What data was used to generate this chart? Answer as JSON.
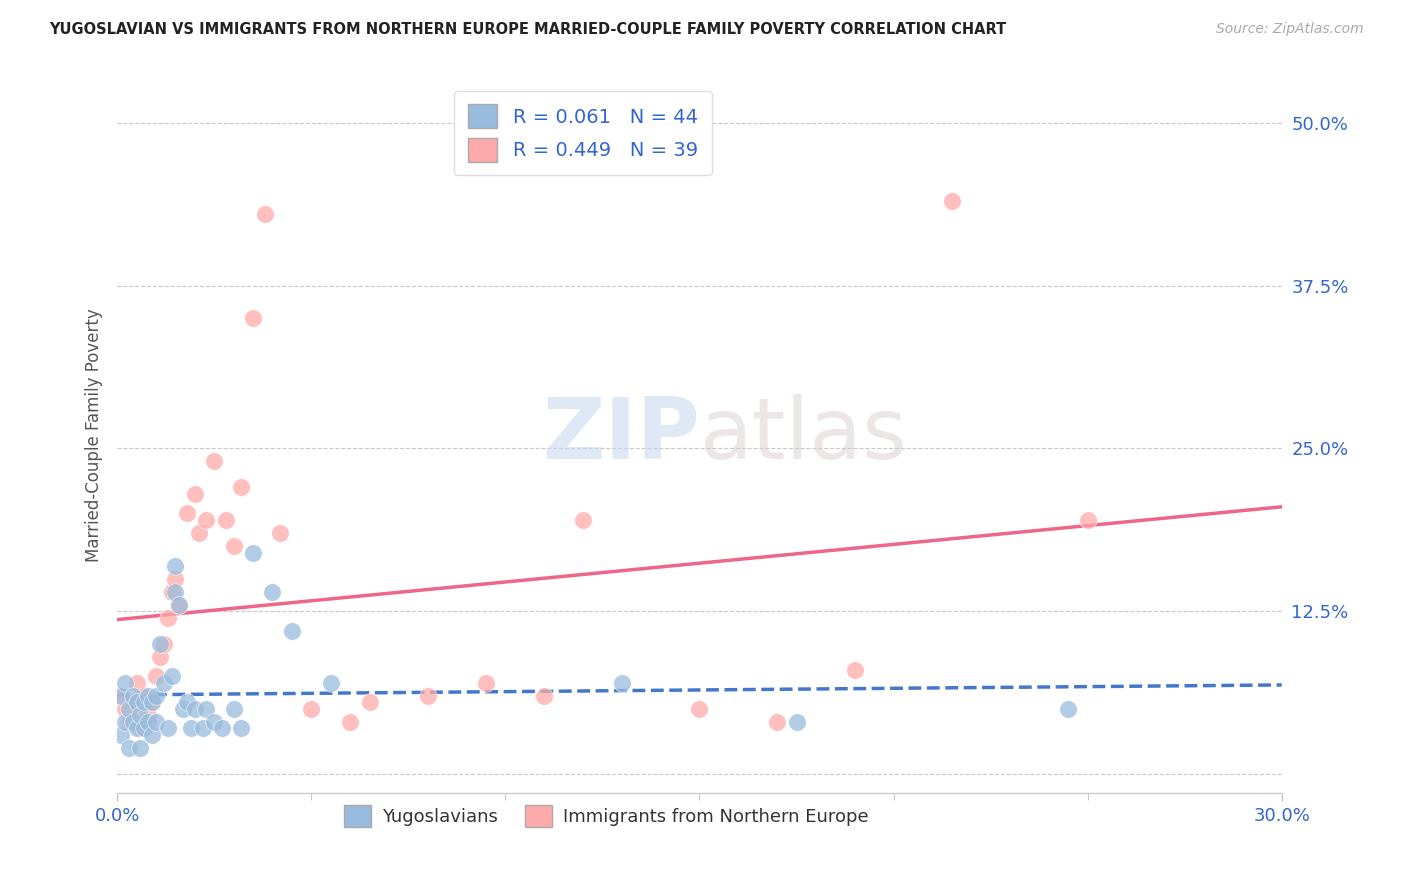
{
  "title": "YUGOSLAVIAN VS IMMIGRANTS FROM NORTHERN EUROPE MARRIED-COUPLE FAMILY POVERTY CORRELATION CHART",
  "source": "Source: ZipAtlas.com",
  "ylabel": "Married-Couple Family Poverty",
  "ytick_values": [
    0.125,
    0.25,
    0.375,
    0.5
  ],
  "ytick_labels": [
    "12.5%",
    "25.0%",
    "37.5%",
    "50.0%"
  ],
  "xlim": [
    0.0,
    0.3
  ],
  "ylim": [
    -0.015,
    0.535
  ],
  "background_color": "#ffffff",
  "grid_color": "#c8c8c8",
  "watermark": "ZIPatlas",
  "legend_labels": [
    "Yugoslavians",
    "Immigrants from Northern Europe"
  ],
  "legend_R": [
    0.061,
    0.449
  ],
  "legend_N": [
    44,
    39
  ],
  "blue_color": "#99bbdd",
  "pink_color": "#ffaaaa",
  "blue_line_color": "#4477cc",
  "pink_line_color": "#ee6688",
  "title_color": "#222222",
  "source_color": "#aaaaaa",
  "tick_color": "#3366cc",
  "yuga_x": [
    0.001,
    0.001,
    0.002,
    0.002,
    0.003,
    0.003,
    0.004,
    0.004,
    0.005,
    0.005,
    0.006,
    0.006,
    0.007,
    0.007,
    0.008,
    0.008,
    0.009,
    0.009,
    0.01,
    0.01,
    0.011,
    0.012,
    0.013,
    0.014,
    0.015,
    0.015,
    0.016,
    0.017,
    0.018,
    0.019,
    0.02,
    0.022,
    0.023,
    0.025,
    0.027,
    0.03,
    0.032,
    0.035,
    0.04,
    0.045,
    0.055,
    0.13,
    0.175,
    0.245
  ],
  "yuga_y": [
    0.03,
    0.06,
    0.04,
    0.07,
    0.05,
    0.02,
    0.04,
    0.06,
    0.035,
    0.055,
    0.045,
    0.02,
    0.055,
    0.035,
    0.04,
    0.06,
    0.03,
    0.055,
    0.04,
    0.06,
    0.1,
    0.07,
    0.035,
    0.075,
    0.14,
    0.16,
    0.13,
    0.05,
    0.055,
    0.035,
    0.05,
    0.035,
    0.05,
    0.04,
    0.035,
    0.05,
    0.035,
    0.17,
    0.14,
    0.11,
    0.07,
    0.07,
    0.04,
    0.05
  ],
  "north_x": [
    0.001,
    0.002,
    0.003,
    0.004,
    0.005,
    0.006,
    0.007,
    0.008,
    0.009,
    0.01,
    0.011,
    0.012,
    0.013,
    0.014,
    0.015,
    0.016,
    0.018,
    0.02,
    0.021,
    0.023,
    0.025,
    0.028,
    0.03,
    0.032,
    0.035,
    0.038,
    0.042,
    0.05,
    0.06,
    0.065,
    0.08,
    0.095,
    0.11,
    0.12,
    0.15,
    0.17,
    0.19,
    0.215,
    0.25
  ],
  "north_y": [
    0.06,
    0.05,
    0.04,
    0.055,
    0.07,
    0.035,
    0.06,
    0.045,
    0.055,
    0.075,
    0.09,
    0.1,
    0.12,
    0.14,
    0.15,
    0.13,
    0.2,
    0.215,
    0.185,
    0.195,
    0.24,
    0.195,
    0.175,
    0.22,
    0.35,
    0.43,
    0.185,
    0.05,
    0.04,
    0.055,
    0.06,
    0.07,
    0.06,
    0.195,
    0.05,
    0.04,
    0.08,
    0.44,
    0.195
  ]
}
